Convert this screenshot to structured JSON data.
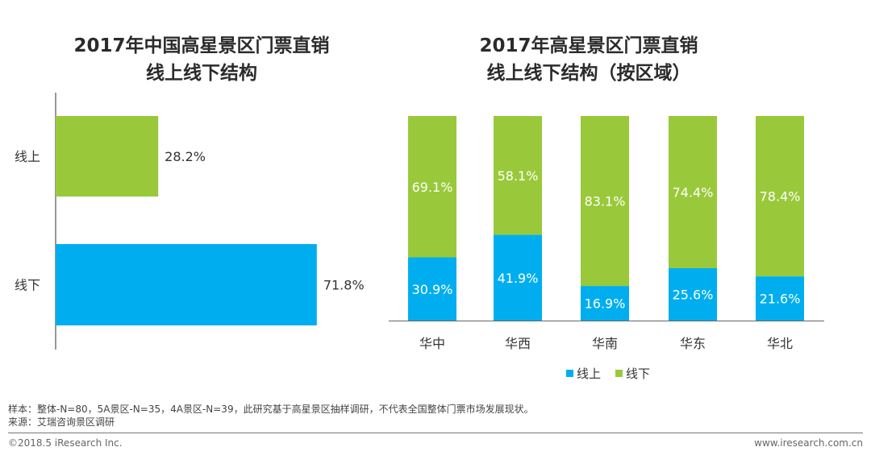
{
  "colors": {
    "online": "#00aeef",
    "offline": "#99c93a",
    "axis": "#555555"
  },
  "chart_data": [
    {
      "type": "bar",
      "orientation": "horizontal",
      "title_line1": "2017年中国高星景区门票直销",
      "title_line2": "线上线下结构",
      "categories": [
        "线上",
        "线下"
      ],
      "values": [
        28.2,
        71.8
      ],
      "labels": [
        "28.2%",
        "71.8%"
      ],
      "xlim": [
        0,
        100
      ]
    },
    {
      "type": "bar",
      "stacked": true,
      "title_line1": "2017年高星景区门票直销",
      "title_line2": "线上线下结构（按区域）",
      "categories": [
        "华中",
        "华西",
        "华南",
        "华东",
        "华北"
      ],
      "series": [
        {
          "name": "线上",
          "values": [
            30.9,
            41.9,
            16.9,
            25.6,
            21.6
          ]
        },
        {
          "name": "线下",
          "values": [
            69.1,
            58.1,
            83.1,
            74.4,
            78.4
          ]
        }
      ],
      "ylim": [
        0,
        100
      ],
      "legend_position": "bottom-center"
    }
  ],
  "footer": {
    "note_sample": "样本：整体-N=80，5A景区-N=35，4A景区-N=39，此研究基于高星景区抽样调研，不代表全国整体门票市场发展现状。",
    "note_source": "来源：艾瑞咨询景区调研",
    "copyright": "©2018.5 iResearch Inc.",
    "website": "www.iresearch.com.cn"
  }
}
